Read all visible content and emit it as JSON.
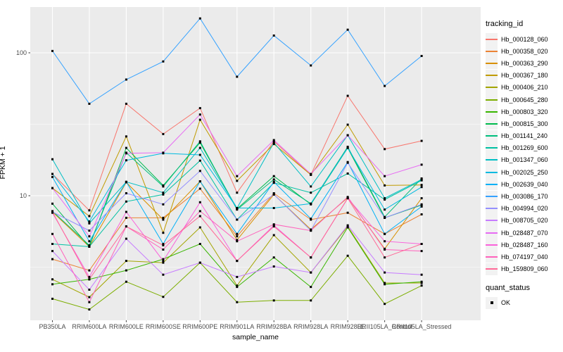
{
  "chart_data": {
    "type": "line",
    "title": "",
    "xlabel": "sample_name",
    "ylabel": "FPKM + 1",
    "y_scale": "log10",
    "y_ticks": [
      100,
      10
    ],
    "ylim_log": [
      1.28,
      300
    ],
    "grid": "on",
    "legend_position": "right",
    "categories": [
      "PB350LA",
      "RRIM600LA",
      "RRIM600LE",
      "RRIM600SE",
      "RRIM600PE",
      "RRIM901LA",
      "RRIM928BA",
      "RRIM928LA",
      "RRIM928LE",
      "RRII105LA_Control",
      "RRII105LA_Stressed"
    ],
    "series": [
      {
        "name": "Hb_000128_060",
        "color": "#F8766D",
        "values": [
          14.2,
          7.9,
          44,
          27,
          41,
          10.5,
          24,
          14.0,
          50,
          21.2,
          24.2
        ]
      },
      {
        "name": "Hb_000358_020",
        "color": "#EB8335",
        "values": [
          3.6,
          3.0,
          7.0,
          7.0,
          11.2,
          5.2,
          10.4,
          6.8,
          7.6,
          5.4,
          7.4
        ]
      },
      {
        "name": "Hb_000363_290",
        "color": "#D89000",
        "values": [
          7.7,
          4.4,
          12.4,
          6.8,
          12.6,
          4.9,
          10.2,
          5.8,
          9.7,
          4.25,
          9.6
        ]
      },
      {
        "name": "Hb_000367_180",
        "color": "#C09B00",
        "values": [
          11.3,
          7.2,
          26,
          5.5,
          34,
          12.7,
          23,
          14,
          31.4,
          11.8,
          11.9
        ]
      },
      {
        "name": "Hb_000406_210",
        "color": "#A3A500",
        "values": [
          2.6,
          1.95,
          3.5,
          3.4,
          6.0,
          2.35,
          5.3,
          2.9,
          6.1,
          2.45,
          2.45
        ]
      },
      {
        "name": "Hb_000645_280",
        "color": "#7CAE00",
        "values": [
          1.9,
          1.6,
          2.5,
          1.96,
          3.4,
          1.8,
          1.85,
          1.85,
          3.8,
          1.75,
          2.35
        ]
      },
      {
        "name": "Hb_000803_320",
        "color": "#39B600",
        "values": [
          2.4,
          2.6,
          3.0,
          3.6,
          4.6,
          2.3,
          3.7,
          2.3,
          6.0,
          2.4,
          2.5
        ]
      },
      {
        "name": "Hb_000815_300",
        "color": "#00BB4E",
        "values": [
          8.8,
          4.4,
          21.6,
          11.8,
          23.5,
          8.1,
          13.7,
          8.7,
          21.6,
          7.0,
          8.6
        ]
      },
      {
        "name": "Hb_001141_240",
        "color": "#00BF7D",
        "values": [
          7.8,
          4.5,
          20,
          11.6,
          24,
          8.0,
          13.0,
          8.8,
          22,
          7.1,
          13.2
        ]
      },
      {
        "name": "Hb_001269_600",
        "color": "#00C1A3",
        "values": [
          4.6,
          4.4,
          9.1,
          10.2,
          17.6,
          6.8,
          12.3,
          10.5,
          14.3,
          9.4,
          12.8
        ]
      },
      {
        "name": "Hb_001347_060",
        "color": "#00BFC4",
        "values": [
          18,
          6.4,
          12.5,
          10.5,
          21.6,
          8.2,
          23.5,
          11.6,
          26.5,
          9.6,
          13.0
        ]
      },
      {
        "name": "Hb_002025_250",
        "color": "#00BAE0",
        "values": [
          14.2,
          6.6,
          17.7,
          19.8,
          19.3,
          8.2,
          8.2,
          8.8,
          21.6,
          8.0,
          11.5
        ]
      },
      {
        "name": "Hb_002639_040",
        "color": "#00B0F6",
        "values": [
          13.5,
          4.8,
          12.5,
          4.6,
          12.6,
          5.4,
          12.5,
          6.9,
          17.2,
          5.4,
          8.4
        ]
      },
      {
        "name": "Hb_003086_170",
        "color": "#35A2FF",
        "values": [
          103,
          44,
          65,
          87,
          174,
          68,
          132,
          81.5,
          145,
          58.6,
          95
        ]
      },
      {
        "name": "Hb_004994_020",
        "color": "#9590FF",
        "values": [
          7.7,
          5.7,
          10.4,
          8.7,
          14.9,
          6.8,
          10.2,
          5.7,
          17.0,
          7.0,
          8.7
        ]
      },
      {
        "name": "Hb_008705_020",
        "color": "#C77CFF",
        "values": [
          4.1,
          2.2,
          5.0,
          2.8,
          3.4,
          2.7,
          3.2,
          2.9,
          6.2,
          2.9,
          2.8
        ]
      },
      {
        "name": "Hb_028487_070",
        "color": "#E76BF3",
        "values": [
          11.3,
          5.2,
          19.8,
          20,
          37,
          13.7,
          24.5,
          14.2,
          26.5,
          13.7,
          16.5
        ]
      },
      {
        "name": "Hb_028487_160",
        "color": "#FA62DB",
        "values": [
          7.6,
          2.7,
          7.7,
          3.5,
          9.0,
          3.5,
          6.2,
          3.7,
          9.6,
          4.8,
          4.6
        ]
      },
      {
        "name": "Hb_074197_040",
        "color": "#FF62BC",
        "values": [
          5.4,
          1.8,
          6.1,
          4.2,
          7.8,
          4.8,
          6.3,
          5.7,
          9.8,
          4.2,
          4.1
        ]
      },
      {
        "name": "Hb_159809_060",
        "color": "#FF6A98",
        "values": [
          7.7,
          2.6,
          6.1,
          4.5,
          7.2,
          3.5,
          6.1,
          3.7,
          9.6,
          3.7,
          4.6
        ]
      }
    ],
    "legend": {
      "color_title": "tracking_id",
      "shape_title": "quant_status",
      "shape_items": [
        {
          "label": "OK",
          "marker": "filled-square"
        }
      ]
    },
    "marker": "filled-square"
  },
  "style": {
    "panel_bg": "#EBEBEB",
    "grid_color": "#FFFFFF",
    "tick_label_color": "#4D4D4D",
    "tick_mark_color": "#333333",
    "point_color": "#000000",
    "legend_key_bg": "#F2F2F2"
  }
}
